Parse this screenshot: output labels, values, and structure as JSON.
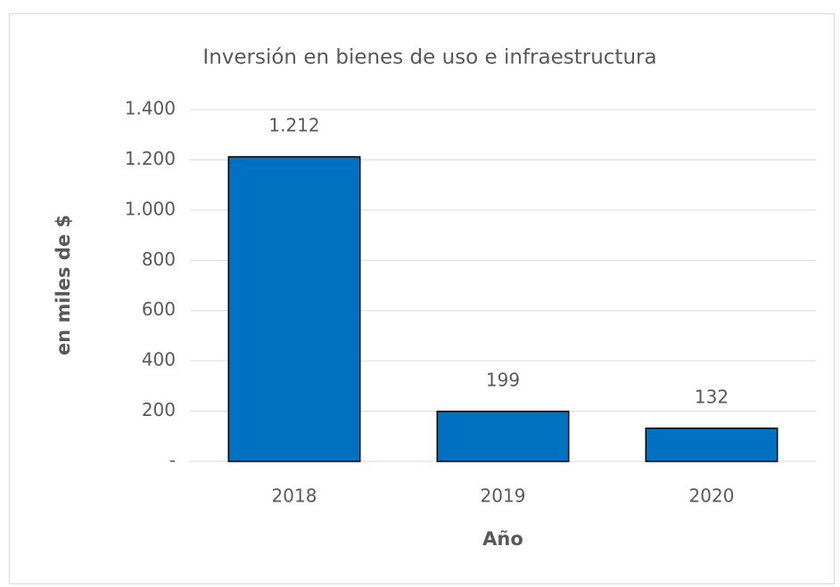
{
  "chart_data": {
    "type": "bar",
    "title": "Inversión en bienes de uso e infraestructura",
    "x_label": "Año",
    "y_label": "en miles de $",
    "categories": [
      "2018",
      "2019",
      "2020"
    ],
    "values": [
      1212,
      199,
      132
    ],
    "value_labels": [
      "1.212",
      "199",
      "132"
    ],
    "color": "#0070c0",
    "ylim": [
      0,
      1400
    ],
    "yticks": [
      {
        "value": 0,
        "label": "-"
      },
      200,
      400,
      600,
      800,
      {
        "value": 1000,
        "label": "1.000"
      },
      {
        "value": 1200,
        "label": "1.200"
      },
      {
        "value": 1400,
        "label": "1.400"
      }
    ],
    "grid": true
  }
}
